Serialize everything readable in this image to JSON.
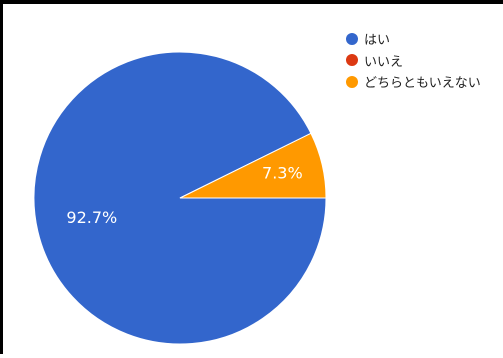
{
  "chart_data": {
    "type": "pie",
    "slices": [
      {
        "label": "はい",
        "value": 92.7,
        "color": "#3366cc",
        "data_label": "92.7%"
      },
      {
        "label": "いいえ",
        "value": 0.0,
        "color": "#dc3912",
        "data_label": ""
      },
      {
        "label": "どちらともいえない",
        "value": 7.3,
        "color": "#ff9900",
        "data_label": "7.3%"
      }
    ],
    "legend_position": "top-right",
    "data_label_color": "#ffffff"
  }
}
